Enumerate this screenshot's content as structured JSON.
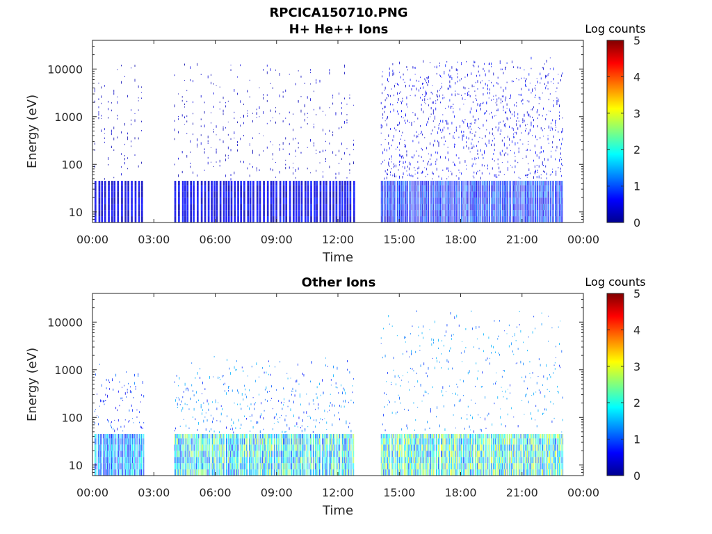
{
  "figure": {
    "title_line1": "RPCICA150710.PNG"
  },
  "chart_data": [
    {
      "type": "heatmap",
      "title": "H+ He++ Ions",
      "xlabel": "Time",
      "ylabel": "Energy (eV)",
      "x_ticks": [
        "00:00",
        "03:00",
        "06:00",
        "09:00",
        "12:00",
        "15:00",
        "18:00",
        "21:00",
        "00:00"
      ],
      "x_range_hours": [
        0,
        24
      ],
      "y_ticks": [
        "10",
        "100",
        "1000",
        "10000"
      ],
      "y_scale": "log",
      "y_range_eV": [
        6,
        40000
      ],
      "colorbar": {
        "label": "Log counts",
        "ticks": [
          "0",
          "1",
          "2",
          "3",
          "4",
          "5"
        ],
        "range": [
          0,
          5
        ],
        "colormap": "jet"
      },
      "data_segments_hours": [
        {
          "start": 0.1,
          "end": 2.5,
          "pattern": "sparse_lines",
          "max_energy_eV": 15000,
          "level": 0.55
        },
        {
          "start": 4.0,
          "end": 12.8,
          "pattern": "sparse_lines",
          "max_energy_eV": 15000,
          "level": 0.6
        },
        {
          "start": 14.1,
          "end": 15.0,
          "pattern": "dense",
          "max_energy_eV": 20000,
          "level": 0.9
        },
        {
          "start": 15.0,
          "end": 17.0,
          "pattern": "dense",
          "max_energy_eV": 20000,
          "level": 0.9
        },
        {
          "start": 17.0,
          "end": 23.0,
          "pattern": "dense",
          "max_energy_eV": 20000,
          "level": 1.0
        }
      ]
    },
    {
      "type": "heatmap",
      "title": "Other Ions",
      "xlabel": "Time",
      "ylabel": "Energy (eV)",
      "x_ticks": [
        "00:00",
        "03:00",
        "06:00",
        "09:00",
        "12:00",
        "15:00",
        "18:00",
        "21:00",
        "00:00"
      ],
      "x_range_hours": [
        0,
        24
      ],
      "y_ticks": [
        "10",
        "100",
        "1000",
        "10000"
      ],
      "y_scale": "log",
      "y_range_eV": [
        6,
        40000
      ],
      "colorbar": {
        "label": "Log counts",
        "ticks": [
          "0",
          "1",
          "2",
          "3",
          "4",
          "5"
        ],
        "range": [
          0,
          5
        ],
        "colormap": "jet"
      },
      "data_segments_hours": [
        {
          "start": 0.1,
          "end": 2.5,
          "pattern": "low_band",
          "max_energy_eV": 1500,
          "level": 1.6
        },
        {
          "start": 4.0,
          "end": 12.8,
          "pattern": "low_band",
          "max_energy_eV": 2000,
          "level": 2.2
        },
        {
          "start": 14.1,
          "end": 23.0,
          "pattern": "low_band",
          "max_energy_eV": 20000,
          "level": 2.4
        }
      ]
    }
  ]
}
